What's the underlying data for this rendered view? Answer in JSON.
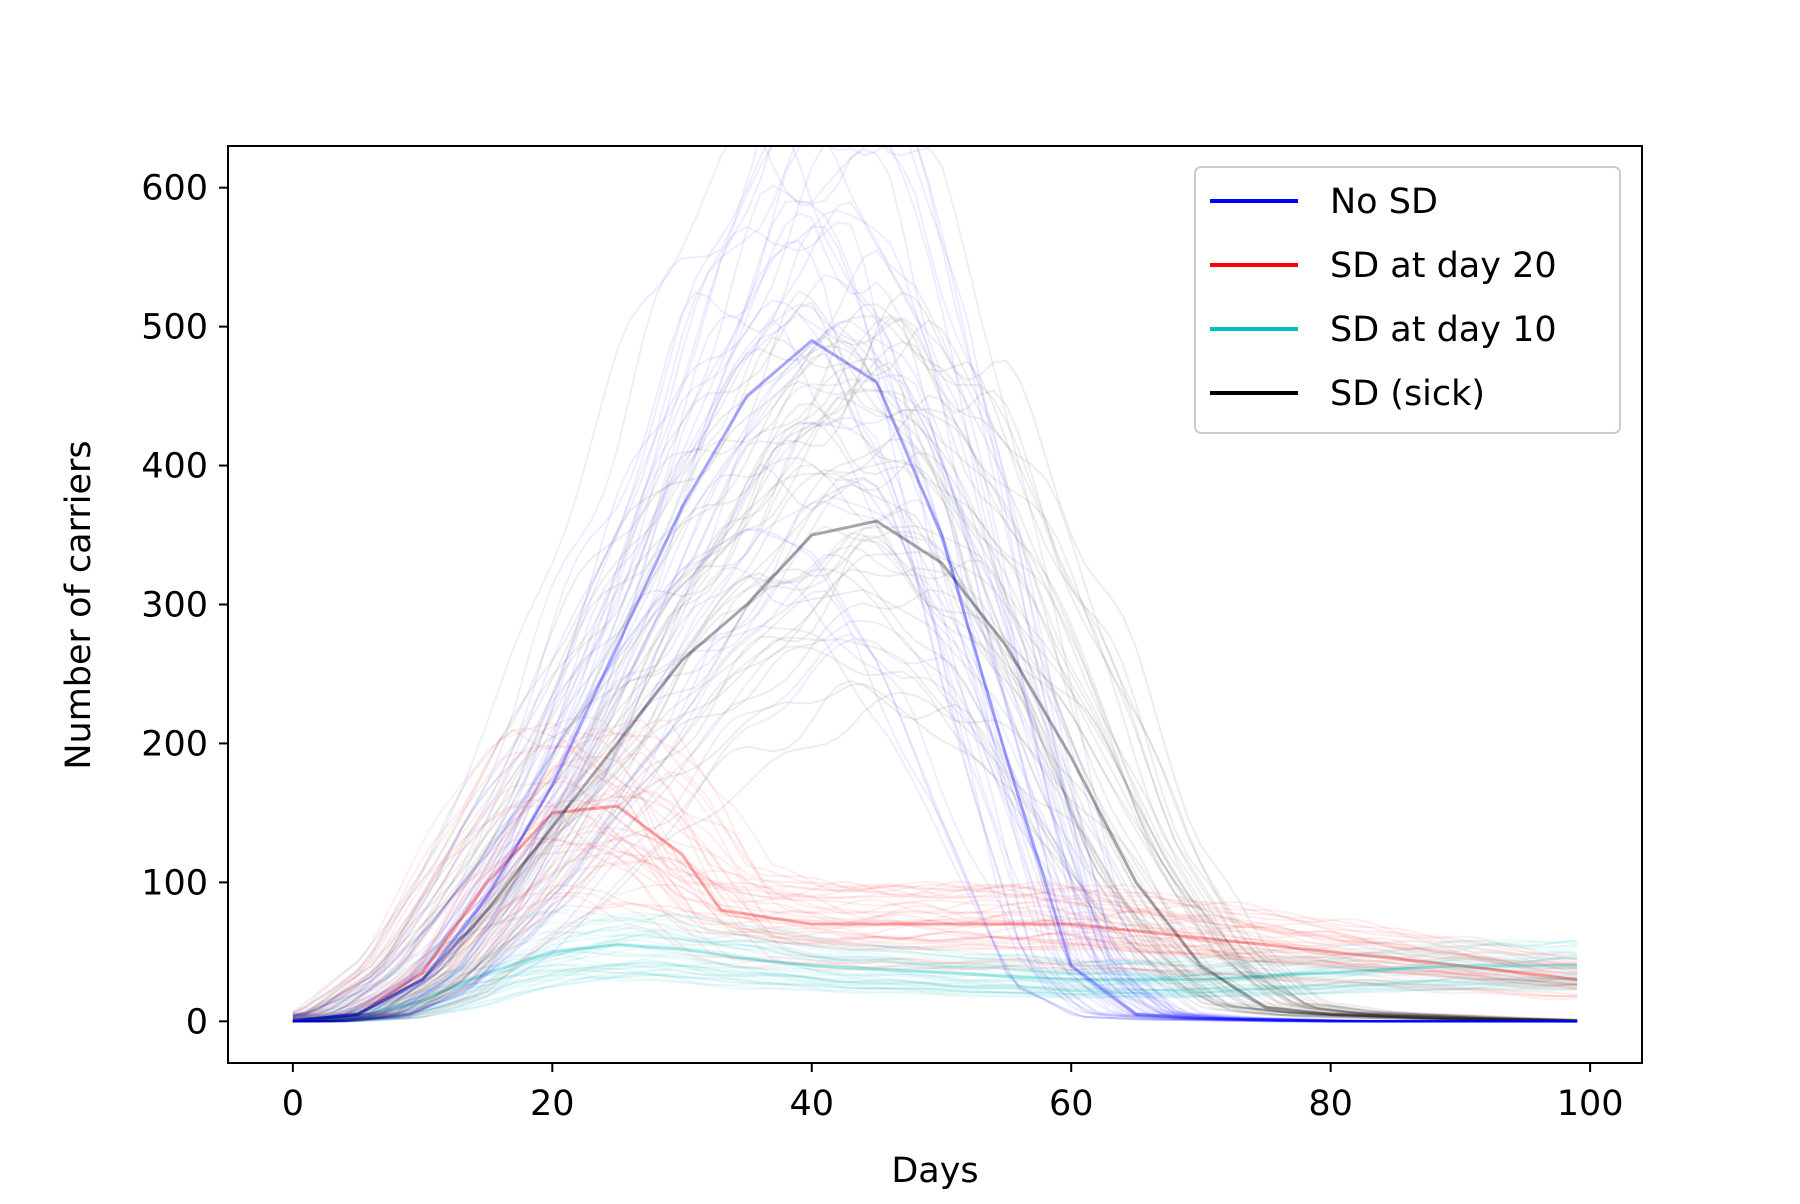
{
  "chart_data": {
    "type": "line",
    "title": "",
    "xlabel": "Days",
    "ylabel": "Number of carriers",
    "xlim": [
      -5,
      104
    ],
    "ylim": [
      -30,
      630
    ],
    "xticks": [
      0,
      20,
      40,
      60,
      80,
      100
    ],
    "yticks": [
      0,
      100,
      200,
      300,
      400,
      500,
      600
    ],
    "grid": false,
    "legend_position": "top-right",
    "note_runs": "Each series is drawn as many overlapping semi-transparent simulation runs; the values below describe the typical central trajectory.",
    "series": [
      {
        "name": "No SD",
        "color": "#0000ff",
        "x": [
          0,
          5,
          10,
          15,
          20,
          25,
          30,
          35,
          40,
          45,
          50,
          55,
          60,
          65,
          70,
          75,
          80,
          90,
          99
        ],
        "y": [
          0,
          5,
          30,
          90,
          170,
          270,
          370,
          450,
          490,
          460,
          350,
          190,
          40,
          5,
          2,
          1,
          0,
          0,
          0
        ]
      },
      {
        "name": "SD at day 20",
        "color": "#ff0000",
        "x": [
          0,
          5,
          10,
          15,
          20,
          25,
          30,
          33,
          40,
          50,
          60,
          70,
          80,
          90,
          99
        ],
        "y": [
          0,
          5,
          35,
          100,
          150,
          155,
          120,
          80,
          70,
          70,
          70,
          60,
          50,
          40,
          30
        ]
      },
      {
        "name": "SD at day 10",
        "color": "#00bfbf",
        "x": [
          0,
          5,
          10,
          15,
          20,
          25,
          30,
          35,
          40,
          50,
          60,
          70,
          80,
          90,
          99
        ],
        "y": [
          0,
          3,
          15,
          35,
          50,
          55,
          52,
          45,
          40,
          35,
          30,
          30,
          35,
          40,
          40
        ]
      },
      {
        "name": "SD (sick)",
        "color": "#000000",
        "x": [
          0,
          5,
          10,
          15,
          20,
          25,
          30,
          35,
          40,
          45,
          50,
          55,
          60,
          65,
          70,
          75,
          80,
          90,
          99
        ],
        "y": [
          0,
          5,
          30,
          80,
          140,
          200,
          260,
          300,
          350,
          360,
          330,
          270,
          190,
          100,
          40,
          10,
          5,
          2,
          0
        ]
      }
    ]
  }
}
